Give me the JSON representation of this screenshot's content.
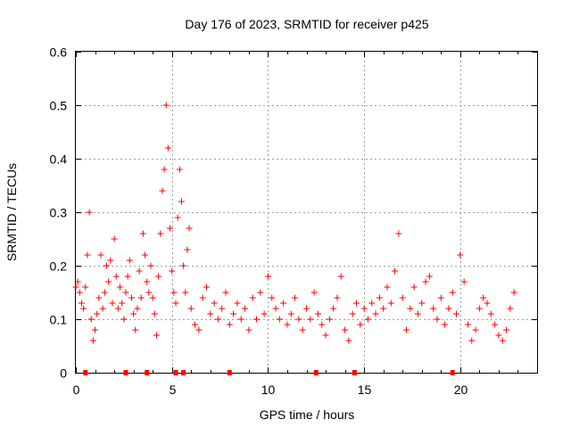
{
  "chart_data": {
    "type": "scatter",
    "title": "Day 176 of 2023, SRMTID for receiver p425",
    "xlabel": "GPS time / hours",
    "ylabel": "SRMTID / TECUs",
    "xlim": [
      0,
      24
    ],
    "ylim": [
      0,
      0.6
    ],
    "xticks": [
      0,
      5,
      10,
      15,
      20
    ],
    "yticks": [
      0,
      0.1,
      0.2,
      0.3,
      0.4,
      0.5,
      0.6
    ],
    "xtick_labels": [
      "0",
      "5",
      "10",
      "15",
      "20"
    ],
    "ytick_labels": [
      "0",
      "0.1",
      "0.2",
      "0.3",
      "0.4",
      "0.5",
      "0.6"
    ],
    "grid": true,
    "marker": "+",
    "color": "#ff0000",
    "series": [
      {
        "name": "SRMTID",
        "x": [
          0.0,
          0.1,
          0.2,
          0.3,
          0.4,
          0.5,
          0.6,
          0.7,
          0.8,
          0.9,
          1.0,
          1.1,
          1.2,
          1.3,
          1.4,
          1.5,
          1.6,
          1.7,
          1.8,
          1.9,
          2.0,
          2.1,
          2.2,
          2.3,
          2.4,
          2.5,
          2.6,
          2.7,
          2.8,
          2.9,
          3.0,
          3.1,
          3.2,
          3.3,
          3.4,
          3.5,
          3.6,
          3.7,
          3.8,
          3.9,
          4.0,
          4.1,
          4.2,
          4.3,
          4.4,
          4.5,
          4.6,
          4.7,
          4.8,
          4.9,
          5.0,
          5.1,
          5.2,
          5.3,
          5.4,
          5.5,
          5.6,
          5.7,
          5.8,
          5.9,
          6.0,
          6.2,
          6.4,
          6.6,
          6.8,
          7.0,
          7.2,
          7.4,
          7.6,
          7.8,
          8.0,
          8.2,
          8.4,
          8.6,
          8.8,
          9.0,
          9.2,
          9.4,
          9.6,
          9.8,
          10.0,
          10.2,
          10.4,
          10.6,
          10.8,
          11.0,
          11.2,
          11.4,
          11.6,
          11.8,
          12.0,
          12.2,
          12.4,
          12.6,
          12.8,
          13.0,
          13.2,
          13.4,
          13.6,
          13.8,
          14.0,
          14.2,
          14.4,
          14.6,
          14.8,
          15.0,
          15.2,
          15.4,
          15.6,
          15.8,
          16.0,
          16.2,
          16.4,
          16.6,
          16.8,
          17.0,
          17.2,
          17.4,
          17.6,
          17.8,
          18.0,
          18.2,
          18.4,
          18.6,
          18.8,
          19.0,
          19.2,
          19.4,
          19.6,
          19.8,
          20.0,
          20.2,
          20.4,
          20.6,
          20.8,
          21.0,
          21.2,
          21.4,
          21.6,
          21.8,
          22.0,
          22.2,
          22.4,
          22.6,
          22.8
        ],
        "y": [
          0.16,
          0.17,
          0.15,
          0.13,
          0.12,
          0.16,
          0.22,
          0.3,
          0.1,
          0.06,
          0.08,
          0.11,
          0.14,
          0.22,
          0.12,
          0.15,
          0.2,
          0.17,
          0.21,
          0.13,
          0.25,
          0.18,
          0.12,
          0.16,
          0.13,
          0.1,
          0.15,
          0.18,
          0.21,
          0.14,
          0.11,
          0.08,
          0.12,
          0.19,
          0.14,
          0.26,
          0.22,
          0.17,
          0.15,
          0.2,
          0.14,
          0.11,
          0.07,
          0.18,
          0.26,
          0.34,
          0.38,
          0.5,
          0.42,
          0.27,
          0.19,
          0.15,
          0.13,
          0.29,
          0.38,
          0.32,
          0.2,
          0.15,
          0.23,
          0.27,
          0.12,
          0.09,
          0.08,
          0.14,
          0.16,
          0.11,
          0.13,
          0.1,
          0.12,
          0.15,
          0.09,
          0.11,
          0.13,
          0.1,
          0.12,
          0.08,
          0.14,
          0.1,
          0.15,
          0.11,
          0.18,
          0.14,
          0.12,
          0.1,
          0.13,
          0.09,
          0.11,
          0.14,
          0.1,
          0.08,
          0.12,
          0.1,
          0.15,
          0.11,
          0.09,
          0.07,
          0.1,
          0.12,
          0.14,
          0.18,
          0.08,
          0.06,
          0.11,
          0.13,
          0.09,
          0.12,
          0.1,
          0.13,
          0.11,
          0.14,
          0.12,
          0.16,
          0.13,
          0.19,
          0.26,
          0.14,
          0.08,
          0.12,
          0.16,
          0.11,
          0.13,
          0.17,
          0.18,
          0.12,
          0.1,
          0.14,
          0.09,
          0.12,
          0.15,
          0.11,
          0.22,
          0.17,
          0.09,
          0.06,
          0.08,
          0.12,
          0.14,
          0.13,
          0.11,
          0.09,
          0.07,
          0.06,
          0.08,
          0.12,
          0.15
        ]
      }
    ],
    "gap_markers_x": [
      0.5,
      2.6,
      3.7,
      5.2,
      5.6,
      8.0,
      12.5,
      14.5,
      19.6
    ]
  }
}
